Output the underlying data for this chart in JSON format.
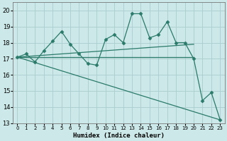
{
  "xlabel": "Humidex (Indice chaleur)",
  "background_color": "#cce8e8",
  "grid_color": "#aacccc",
  "line_color": "#2a7a6a",
  "xlim": [
    -0.5,
    23.5
  ],
  "ylim": [
    13,
    20.5
  ],
  "yticks": [
    13,
    14,
    15,
    16,
    17,
    18,
    19,
    20
  ],
  "xticks": [
    0,
    1,
    2,
    3,
    4,
    5,
    6,
    7,
    8,
    9,
    10,
    11,
    12,
    13,
    14,
    15,
    16,
    17,
    18,
    19,
    20,
    21,
    22,
    23
  ],
  "main_series": [
    17.1,
    17.3,
    16.8,
    17.5,
    18.1,
    18.7,
    17.9,
    17.3,
    16.7,
    16.6,
    18.2,
    18.5,
    18.0,
    19.8,
    19.8,
    18.3,
    18.5,
    19.3,
    18.0,
    18.0,
    17.0,
    14.4,
    14.9,
    13.2
  ],
  "trend1_x": [
    0,
    20
  ],
  "trend1_y": [
    17.1,
    17.1
  ],
  "trend2_x": [
    0,
    20
  ],
  "trend2_y": [
    17.1,
    17.9
  ],
  "trend3_x": [
    0,
    23
  ],
  "trend3_y": [
    17.1,
    13.2
  ]
}
